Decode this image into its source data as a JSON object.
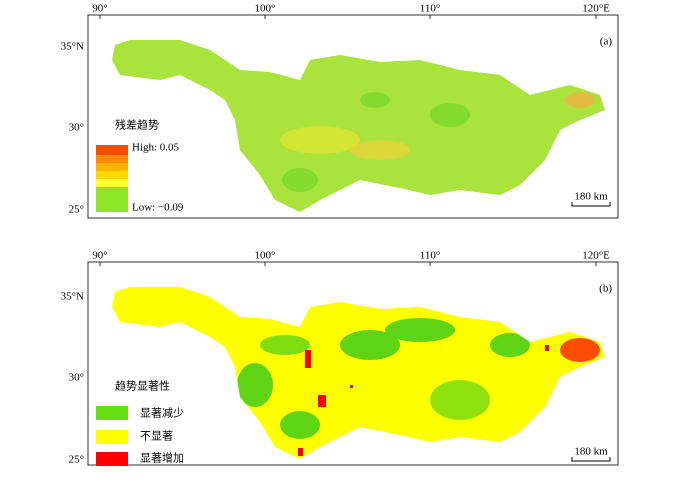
{
  "panels": [
    {
      "label": "(a)",
      "top_ticks": [
        "90°",
        "100°",
        "110°",
        "120°E"
      ],
      "left_ticks": [
        "35°N",
        "30°",
        "25°"
      ],
      "legend": {
        "title": "残差趋势",
        "high": "High: 0.05",
        "low": "Low: −0.09"
      },
      "scale_bar": "180 km"
    },
    {
      "label": "(b)",
      "top_ticks": [
        "90°",
        "100°",
        "110°",
        "120°E"
      ],
      "left_ticks": [
        "35°N",
        "30°",
        "25°"
      ],
      "legend": {
        "title": "趋势显著性",
        "items": [
          "显著减少",
          "不显著",
          "显著增加"
        ]
      },
      "scale_bar": "180 km"
    }
  ]
}
